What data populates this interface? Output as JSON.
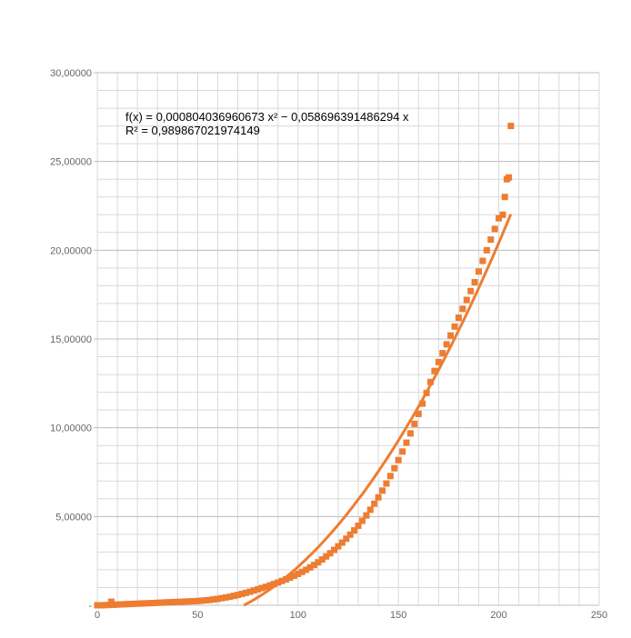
{
  "chart_data": {
    "type": "scatter",
    "title": "",
    "xlabel": "",
    "ylabel": "",
    "xlim": [
      0,
      250
    ],
    "ylim": [
      0,
      30
    ],
    "x_ticks": [
      "0",
      "50",
      "100",
      "150",
      "200",
      "250"
    ],
    "y_ticks": [
      "-",
      "5,00000",
      "10,00000",
      "15,00000",
      "20,00000",
      "25,00000",
      "30,00000"
    ],
    "y_tick_values": [
      0,
      5,
      10,
      15,
      20,
      25,
      30
    ],
    "x_tick_values": [
      0,
      50,
      100,
      150,
      200,
      250
    ],
    "grid": true,
    "marker_color": "#ED7D31",
    "trendline_color": "#ED7D31",
    "grid_color": "#D9D9D9",
    "equation_text": "f(x) = 0,000804036960673 x² − 0,058696391486294 x",
    "r_squared_text": "R² = 0,989867021974149",
    "series": [
      {
        "points": [
          [
            0,
            0
          ],
          [
            2,
            0
          ],
          [
            4,
            0.01
          ],
          [
            6,
            0.02
          ],
          [
            7,
            0.2
          ],
          [
            8,
            0.03
          ],
          [
            10,
            0.04
          ],
          [
            12,
            0.05
          ],
          [
            14,
            0.06
          ],
          [
            16,
            0.07
          ],
          [
            18,
            0.08
          ],
          [
            20,
            0.09
          ],
          [
            22,
            0.1
          ],
          [
            24,
            0.11
          ],
          [
            26,
            0.12
          ],
          [
            28,
            0.13
          ],
          [
            30,
            0.14
          ],
          [
            32,
            0.15
          ],
          [
            34,
            0.16
          ],
          [
            36,
            0.17
          ],
          [
            38,
            0.18
          ],
          [
            40,
            0.19
          ],
          [
            42,
            0.2
          ],
          [
            44,
            0.21
          ],
          [
            46,
            0.22
          ],
          [
            48,
            0.23
          ],
          [
            50,
            0.24
          ],
          [
            52,
            0.26
          ],
          [
            54,
            0.28
          ],
          [
            56,
            0.3
          ],
          [
            58,
            0.33
          ],
          [
            60,
            0.36
          ],
          [
            62,
            0.4
          ],
          [
            64,
            0.44
          ],
          [
            66,
            0.48
          ],
          [
            68,
            0.53
          ],
          [
            70,
            0.58
          ],
          [
            72,
            0.64
          ],
          [
            74,
            0.7
          ],
          [
            76,
            0.76
          ],
          [
            78,
            0.83
          ],
          [
            80,
            0.9
          ],
          [
            82,
            0.97
          ],
          [
            84,
            1.04
          ],
          [
            86,
            1.12
          ],
          [
            88,
            1.2
          ],
          [
            90,
            1.28
          ],
          [
            92,
            1.37
          ],
          [
            94,
            1.46
          ],
          [
            96,
            1.56
          ],
          [
            98,
            1.66
          ],
          [
            100,
            1.77
          ],
          [
            102,
            1.88
          ],
          [
            104,
            2.0
          ],
          [
            106,
            2.13
          ],
          [
            108,
            2.27
          ],
          [
            110,
            2.42
          ],
          [
            112,
            2.58
          ],
          [
            114,
            2.75
          ],
          [
            116,
            2.93
          ],
          [
            118,
            3.12
          ],
          [
            120,
            3.32
          ],
          [
            122,
            3.53
          ],
          [
            124,
            3.75
          ],
          [
            126,
            3.98
          ],
          [
            128,
            4.22
          ],
          [
            130,
            4.48
          ],
          [
            132,
            4.76
          ],
          [
            134,
            5.06
          ],
          [
            136,
            5.38
          ],
          [
            138,
            5.72
          ],
          [
            140,
            6.08
          ],
          [
            142,
            6.46
          ],
          [
            144,
            6.86
          ],
          [
            146,
            7.28
          ],
          [
            148,
            7.72
          ],
          [
            150,
            8.18
          ],
          [
            152,
            8.66
          ],
          [
            154,
            9.16
          ],
          [
            156,
            9.68
          ],
          [
            158,
            10.22
          ],
          [
            160,
            10.78
          ],
          [
            162,
            11.36
          ],
          [
            164,
            11.96
          ],
          [
            166,
            12.58
          ],
          [
            168,
            13.2
          ],
          [
            170,
            13.7
          ],
          [
            172,
            14.2
          ],
          [
            174,
            14.7
          ],
          [
            176,
            15.2
          ],
          [
            178,
            15.7
          ],
          [
            180,
            16.2
          ],
          [
            182,
            16.7
          ],
          [
            184,
            17.2
          ],
          [
            186,
            17.7
          ],
          [
            188,
            18.2
          ],
          [
            190,
            18.8
          ],
          [
            192,
            19.4
          ],
          [
            194,
            20.0
          ],
          [
            196,
            20.6
          ],
          [
            198,
            21.2
          ],
          [
            200,
            21.8
          ],
          [
            202,
            22.0
          ],
          [
            203,
            23.0
          ],
          [
            204,
            24.0
          ],
          [
            205,
            24.1
          ],
          [
            206,
            27.0
          ]
        ]
      }
    ],
    "trendline": {
      "kind": "polynomial",
      "a": 0.000804036960673,
      "b": -0.058696391486294,
      "x_range": [
        73,
        206
      ]
    }
  }
}
